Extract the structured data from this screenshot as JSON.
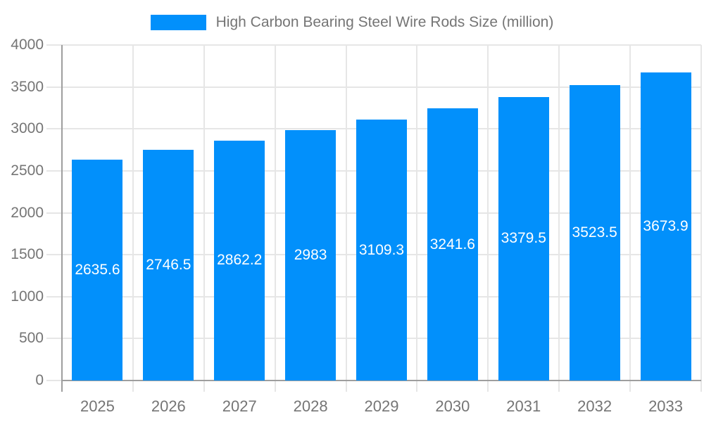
{
  "legend": {
    "label": "High Carbon Bearing Steel Wire Rods Size (million)"
  },
  "chart_data": {
    "type": "bar",
    "title": "High Carbon Bearing Steel Wire Rods Size (million)",
    "categories": [
      "2025",
      "2026",
      "2027",
      "2028",
      "2029",
      "2030",
      "2031",
      "2032",
      "2033"
    ],
    "values": [
      2635.6,
      2746.5,
      2862.2,
      2983,
      3109.3,
      3241.6,
      3379.5,
      3523.5,
      3673.9
    ],
    "bar_labels": [
      "2635.6",
      "2746.5",
      "2862.2",
      "2983",
      "3109.3",
      "3241.6",
      "3379.5",
      "3523.5",
      "3673.9"
    ],
    "series_name": "High Carbon Bearing Steel Wire Rods Size (million)",
    "xlabel": "",
    "ylabel": "",
    "ylim": [
      0,
      4000
    ],
    "ytick_step": 500,
    "yticks": [
      0,
      500,
      1000,
      1500,
      2000,
      2500,
      3000,
      3500,
      4000
    ],
    "grid": true,
    "legend_position": "top",
    "value_label_position": "inside-middle",
    "colors": {
      "bar": "#0290fb",
      "axis": "#9e9e9e",
      "gridline": "#e6e6e6",
      "axis_text": "#757575",
      "bar_label_text": "#ffffff",
      "background": "#ffffff"
    }
  }
}
